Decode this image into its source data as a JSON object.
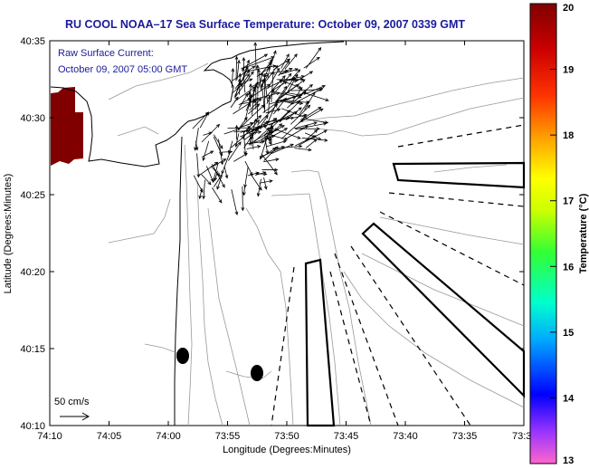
{
  "title": "RU COOL  NOAA–17  Sea Surface Temperature:  October 09, 2007 0339 GMT",
  "current_label_line1": "Raw Surface Current:",
  "current_label_line2": "October 09, 2007 05:00 GMT",
  "scale_label": "50 cm/s",
  "colorbar": {
    "label": "Temperature (°C)",
    "min": 13,
    "max": 20,
    "ticks": [
      "20",
      "19",
      "18",
      "17",
      "16",
      "15",
      "14",
      "13"
    ],
    "colors": [
      "#ff66cc",
      "#9933ff",
      "#0000ff",
      "#00aaff",
      "#00ffcc",
      "#33ff33",
      "#ccff00",
      "#ffff00",
      "#ffaa00",
      "#ff3300",
      "#cc0000",
      "#800000"
    ]
  },
  "chart_data": {
    "type": "map",
    "xlabel": "Longitude (Degrees:Minutes)",
    "ylabel": "Latitude (Degrees:Minutes)",
    "xticks": [
      "74:10",
      "74:05",
      "74:00",
      "73:55",
      "73:50",
      "73:45",
      "73:40",
      "73:35",
      "73:3"
    ],
    "yticks": [
      "40:35",
      "40:30",
      "40:25",
      "40:20",
      "40:15",
      "40:10"
    ],
    "xlim": [
      -74.1667,
      -73.5
    ],
    "ylim": [
      40.1667,
      40.5833
    ]
  },
  "sst_patch_color": "#800000"
}
